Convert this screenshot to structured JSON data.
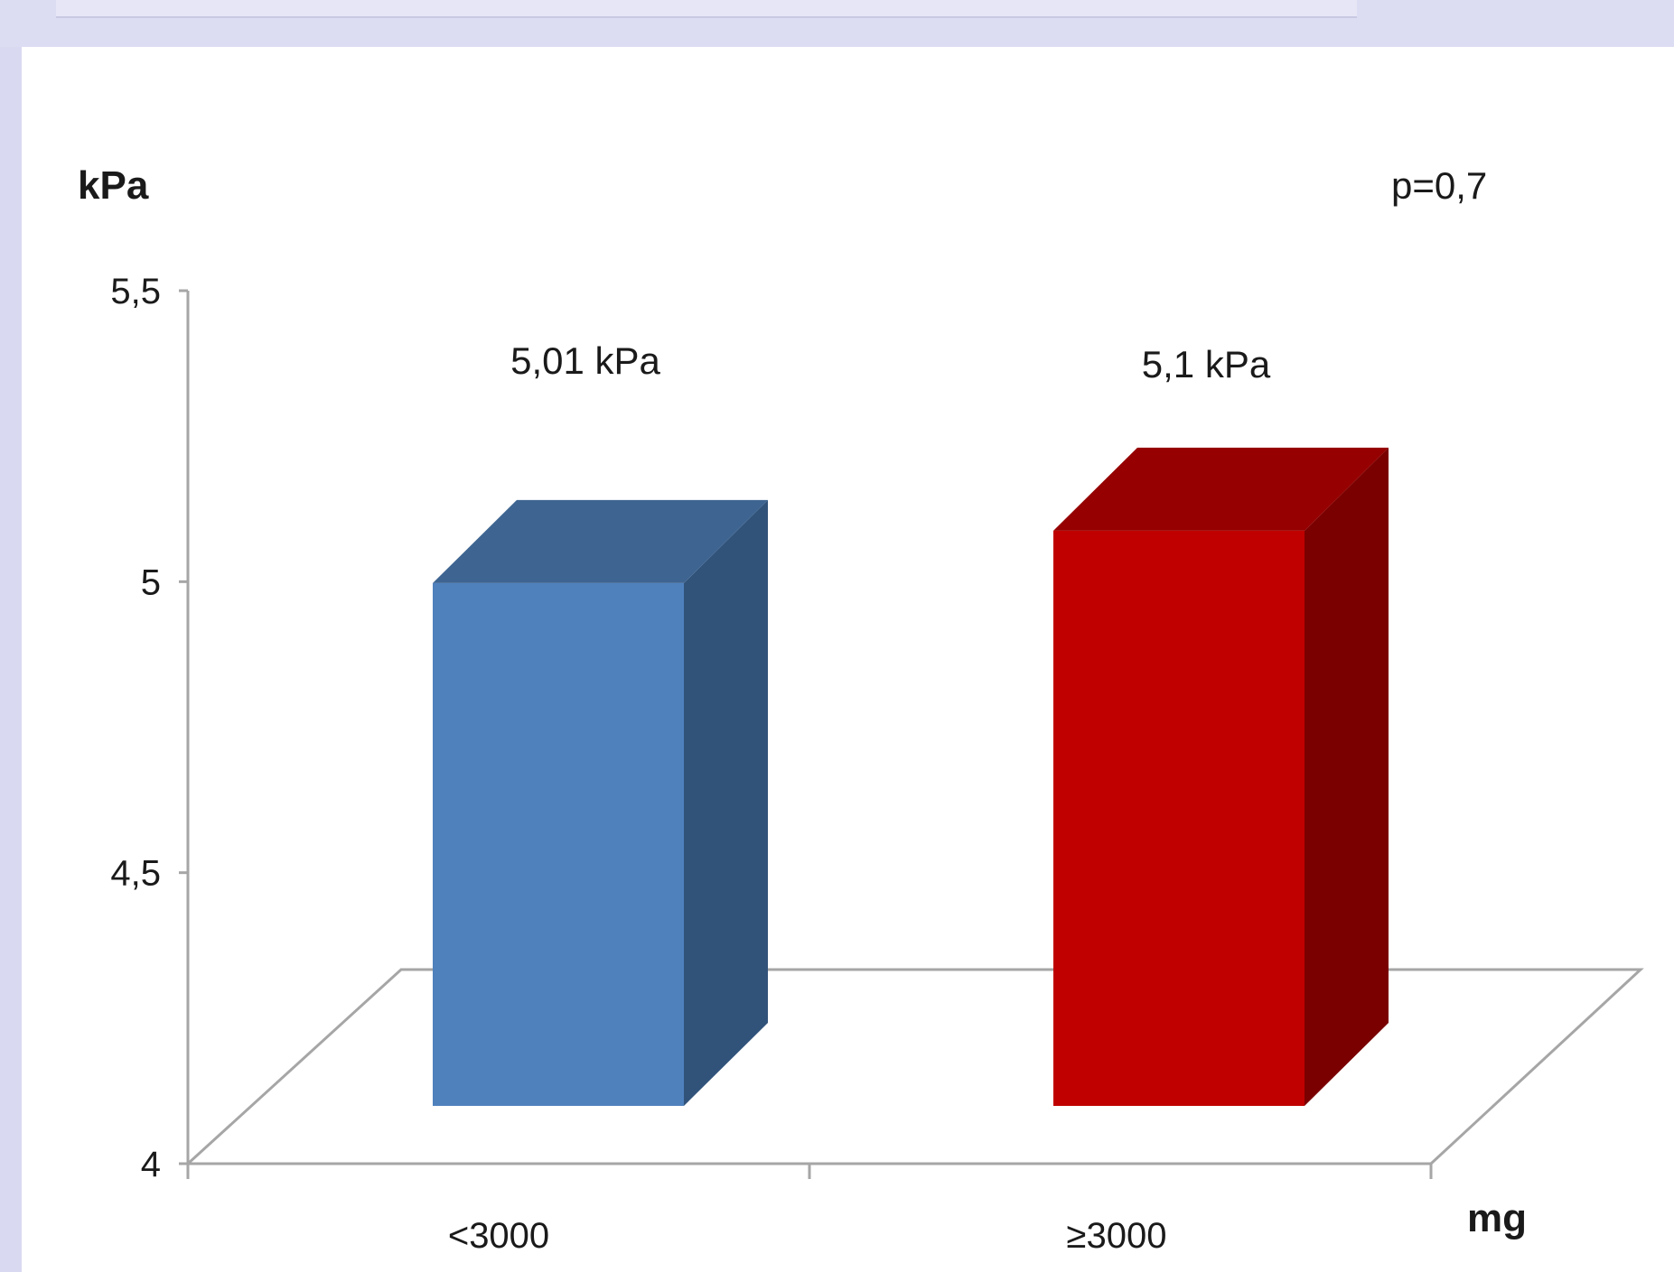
{
  "chart_data": {
    "type": "bar",
    "categories": [
      "<3000",
      "≥3000"
    ],
    "values": [
      5.01,
      5.1
    ],
    "data_labels": [
      "5,01 kPa",
      "5,1 kPa"
    ],
    "ylabel": "kPa",
    "xlabel": "mg",
    "annotation": "p=0,7",
    "ylim": [
      4,
      5.5
    ],
    "yticks": [
      4,
      4.5,
      5,
      5.5
    ],
    "ytick_labels": [
      "4",
      "4,5",
      "5",
      "5,5"
    ],
    "three_d": true,
    "grid": false,
    "colors": {
      "bar_front": [
        "#4f81bd",
        "#c00000"
      ],
      "bar_side": [
        "#31537a",
        "#7a0000"
      ],
      "bar_top": [
        "#3e6591",
        "#960000"
      ],
      "axis": "#a6a6a6"
    }
  }
}
